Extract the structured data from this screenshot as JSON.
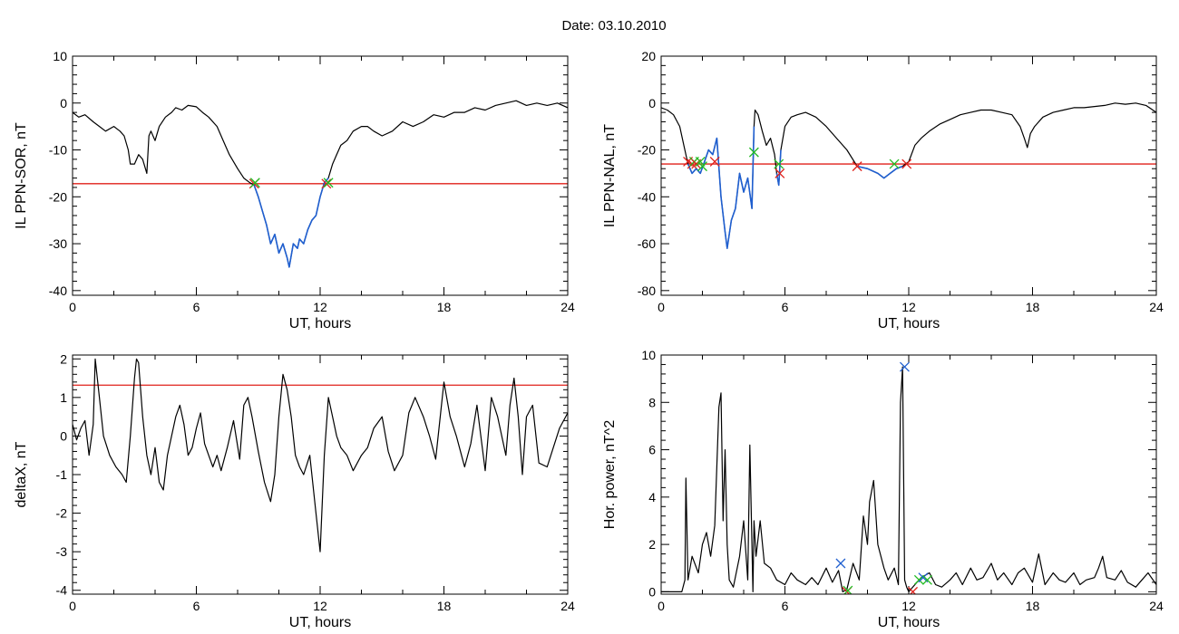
{
  "page_title": "Date:  03.10.2010",
  "colors": {
    "trace": "#000000",
    "highlight": "#1f5fd0",
    "threshold": "#e0201a",
    "marker_red": "#e0201a",
    "marker_green": "#22bb22",
    "marker_blue": "#1f5fd0"
  },
  "chart_data": [
    {
      "id": "p1",
      "type": "line",
      "title": "",
      "xlabel": "UT, hours",
      "ylabel": "IL PPN-SOR, nT",
      "xlim": [
        0,
        24
      ],
      "ylim": [
        -41,
        10
      ],
      "xticks": [
        0,
        6,
        12,
        18,
        24
      ],
      "yticks": [
        -40,
        -30,
        -20,
        -10,
        0,
        10
      ],
      "threshold": -17.2,
      "highlight_ranges": [
        [
          8.8,
          12.4
        ]
      ],
      "series": [
        {
          "x": [
            0,
            0.3,
            0.6,
            1,
            1.3,
            1.6,
            2,
            2.3,
            2.5,
            2.7,
            2.8,
            3,
            3.2,
            3.4,
            3.6,
            3.7,
            3.8,
            4,
            4.2,
            4.5,
            4.8,
            5,
            5.3,
            5.6,
            6,
            6.3,
            6.6,
            7,
            7.3,
            7.6,
            8,
            8.3,
            8.6,
            8.8,
            9,
            9.2,
            9.4,
            9.6,
            9.8,
            10,
            10.2,
            10.4,
            10.5,
            10.7,
            10.9,
            11,
            11.2,
            11.4,
            11.6,
            11.8,
            12,
            12.2,
            12.4,
            12.6,
            12.8,
            13,
            13.3,
            13.6,
            14,
            14.3,
            14.6,
            15,
            15.5,
            16,
            16.5,
            17,
            17.5,
            18,
            18.5,
            19,
            19.5,
            20,
            20.5,
            21,
            21.5,
            22,
            22.5,
            23,
            23.5,
            24
          ],
          "y": [
            -2,
            -3,
            -2.5,
            -4,
            -5,
            -6,
            -5,
            -6,
            -7,
            -10,
            -13,
            -13,
            -11,
            -12,
            -15,
            -7,
            -6,
            -8,
            -5,
            -3,
            -2,
            -1,
            -1.5,
            -0.5,
            -0.8,
            -2,
            -3,
            -5,
            -8,
            -11,
            -14,
            -16,
            -17,
            -17.5,
            -20,
            -23,
            -26,
            -30,
            -28,
            -32,
            -30,
            -33,
            -35,
            -30,
            -31,
            -29,
            -30,
            -27,
            -25,
            -24,
            -20,
            -17,
            -16,
            -13,
            -11,
            -9,
            -8,
            -6,
            -5,
            -5,
            -6,
            -7,
            -6,
            -4,
            -5,
            -4,
            -2.5,
            -3,
            -2,
            -2,
            -1,
            -1.5,
            -0.5,
            0,
            0.5,
            -0.5,
            0,
            -0.5,
            0,
            -1
          ]
        }
      ],
      "markers": [
        {
          "x": 8.8,
          "y": -17.2,
          "color": "red"
        },
        {
          "x": 8.85,
          "y": -17.0,
          "color": "green"
        },
        {
          "x": 12.3,
          "y": -17.2,
          "color": "red"
        },
        {
          "x": 12.4,
          "y": -17.0,
          "color": "green"
        }
      ]
    },
    {
      "id": "p2",
      "type": "line",
      "title": "",
      "xlabel": "UT, hours",
      "ylabel": "IL PPN-NAL, nT",
      "xlim": [
        0,
        24
      ],
      "ylim": [
        -82,
        20
      ],
      "xticks": [
        0,
        6,
        12,
        18,
        24
      ],
      "yticks": [
        -80,
        -60,
        -40,
        -20,
        0,
        20
      ],
      "threshold": -26,
      "highlight_ranges": [
        [
          1.3,
          4.5
        ],
        [
          5.6,
          5.8
        ],
        [
          9.5,
          11.9
        ]
      ],
      "series": [
        {
          "x": [
            0,
            0.3,
            0.6,
            0.9,
            1.1,
            1.3,
            1.5,
            1.7,
            1.9,
            2.1,
            2.3,
            2.5,
            2.7,
            2.9,
            3.1,
            3.2,
            3.4,
            3.6,
            3.8,
            4,
            4.2,
            4.4,
            4.5,
            4.55,
            4.7,
            4.9,
            5.1,
            5.3,
            5.5,
            5.6,
            5.7,
            5.8,
            6,
            6.3,
            6.6,
            7,
            7.5,
            8,
            8.5,
            9,
            9.5,
            10,
            10.5,
            10.8,
            11.1,
            11.4,
            11.7,
            12,
            12.3,
            12.6,
            13,
            13.5,
            14,
            14.5,
            15,
            15.5,
            16,
            16.5,
            17,
            17.4,
            17.6,
            17.75,
            17.9,
            18.1,
            18.5,
            19,
            19.5,
            20,
            20.5,
            21,
            21.5,
            22,
            22.5,
            23,
            23.5,
            24
          ],
          "y": [
            -2,
            -3,
            -5,
            -10,
            -18,
            -26,
            -30,
            -28,
            -30,
            -25,
            -20,
            -22,
            -15,
            -40,
            -55,
            -62,
            -50,
            -45,
            -30,
            -38,
            -32,
            -45,
            -10,
            -3,
            -5,
            -12,
            -18,
            -15,
            -22,
            -30,
            -35,
            -20,
            -10,
            -6,
            -5,
            -4,
            -6,
            -10,
            -15,
            -20,
            -27,
            -28,
            -30,
            -32,
            -30,
            -28,
            -27,
            -25,
            -18,
            -15,
            -12,
            -9,
            -7,
            -5,
            -4,
            -3,
            -3,
            -4,
            -5,
            -10,
            -15,
            -19,
            -13,
            -10,
            -6,
            -4,
            -3,
            -2,
            -2,
            -1.5,
            -1,
            0,
            -0.5,
            0,
            -1,
            -4
          ]
        }
      ],
      "markers": [
        {
          "x": 1.3,
          "y": -25,
          "color": "red"
        },
        {
          "x": 1.5,
          "y": -26,
          "color": "red"
        },
        {
          "x": 1.6,
          "y": -25,
          "color": "green"
        },
        {
          "x": 1.7,
          "y": -26,
          "color": "red"
        },
        {
          "x": 1.9,
          "y": -25,
          "color": "green"
        },
        {
          "x": 2.0,
          "y": -27,
          "color": "green"
        },
        {
          "x": 2.6,
          "y": -25,
          "color": "red"
        },
        {
          "x": 4.5,
          "y": -21,
          "color": "green"
        },
        {
          "x": 5.7,
          "y": -26,
          "color": "green"
        },
        {
          "x": 5.75,
          "y": -30,
          "color": "red"
        },
        {
          "x": 9.5,
          "y": -27,
          "color": "red"
        },
        {
          "x": 11.3,
          "y": -26,
          "color": "green"
        },
        {
          "x": 11.9,
          "y": -26,
          "color": "red"
        }
      ]
    },
    {
      "id": "p3",
      "type": "line",
      "title": "",
      "xlabel": "UT, hours",
      "ylabel": "deltaX, nT",
      "xlim": [
        0,
        24
      ],
      "ylim": [
        -4.1,
        2.1
      ],
      "xticks": [
        0,
        6,
        12,
        18,
        24
      ],
      "yticks": [
        -4,
        -3,
        -2,
        -1,
        0,
        1,
        2
      ],
      "threshold": 1.32,
      "highlight_ranges": [],
      "series": [
        {
          "x": [
            0,
            0.2,
            0.4,
            0.6,
            0.8,
            1,
            1.1,
            1.3,
            1.5,
            1.8,
            2.1,
            2.4,
            2.6,
            2.8,
            3,
            3.1,
            3.2,
            3.4,
            3.6,
            3.8,
            4,
            4.2,
            4.4,
            4.6,
            4.8,
            5,
            5.2,
            5.4,
            5.6,
            5.8,
            6,
            6.2,
            6.4,
            6.6,
            6.8,
            7,
            7.2,
            7.5,
            7.8,
            8.1,
            8.3,
            8.5,
            8.7,
            9,
            9.3,
            9.6,
            9.8,
            10,
            10.2,
            10.4,
            10.6,
            10.8,
            11,
            11.2,
            11.5,
            11.8,
            12,
            12.2,
            12.4,
            12.6,
            12.8,
            13,
            13.3,
            13.6,
            14,
            14.3,
            14.6,
            15,
            15.3,
            15.6,
            16,
            16.3,
            16.6,
            17,
            17.3,
            17.6,
            18,
            18.3,
            18.6,
            19,
            19.3,
            19.6,
            20,
            20.3,
            20.6,
            21,
            21.2,
            21.4,
            21.6,
            21.8,
            22,
            22.3,
            22.6,
            23,
            23.3,
            23.6,
            24
          ],
          "y": [
            0.3,
            -0.1,
            0.2,
            0.4,
            -0.5,
            0.3,
            2,
            1,
            0,
            -0.5,
            -0.8,
            -1,
            -1.2,
            0,
            1.5,
            2,
            1.9,
            0.5,
            -0.5,
            -1,
            -0.3,
            -1.2,
            -1.4,
            -0.5,
            0,
            0.5,
            0.8,
            0.3,
            -0.5,
            -0.3,
            0.2,
            0.6,
            -0.2,
            -0.5,
            -0.8,
            -0.5,
            -0.9,
            -0.3,
            0.4,
            -0.6,
            0.8,
            1,
            0.5,
            -0.4,
            -1.2,
            -1.7,
            -1,
            0.5,
            1.6,
            1.2,
            0.5,
            -0.5,
            -0.8,
            -1,
            -0.5,
            -2,
            -3,
            -0.5,
            1,
            0.5,
            0,
            -0.3,
            -0.5,
            -0.9,
            -0.5,
            -0.3,
            0.2,
            0.5,
            -0.4,
            -0.9,
            -0.5,
            0.6,
            1,
            0.5,
            0,
            -0.6,
            1.4,
            0.5,
            0,
            -0.8,
            -0.2,
            0.8,
            -0.9,
            1,
            0.5,
            -0.5,
            0.8,
            1.5,
            0.5,
            -1,
            0.5,
            0.8,
            -0.7,
            -0.8,
            -0.3,
            0.2,
            0.6
          ]
        }
      ],
      "markers": []
    },
    {
      "id": "p4",
      "type": "line",
      "title": "",
      "xlabel": "UT, hours",
      "ylabel": "Hor. power, nT^2",
      "xlim": [
        0,
        24
      ],
      "ylim": [
        -0.1,
        10
      ],
      "xticks": [
        0,
        6,
        12,
        18,
        24
      ],
      "yticks": [
        0,
        2,
        4,
        6,
        8,
        10
      ],
      "threshold": null,
      "highlight_ranges": [],
      "series": [
        {
          "x": [
            0,
            0.5,
            1,
            1.15,
            1.2,
            1.3,
            1.5,
            1.8,
            2,
            2.2,
            2.4,
            2.6,
            2.8,
            2.9,
            3,
            3.1,
            3.2,
            3.3,
            3.5,
            3.8,
            4,
            4.2,
            4.3,
            4.45,
            4.5,
            4.6,
            4.8,
            5,
            5.3,
            5.6,
            6,
            6.3,
            6.6,
            7,
            7.3,
            7.6,
            8,
            8.3,
            8.6,
            8.8,
            9,
            9.3,
            9.6,
            9.8,
            10,
            10.1,
            10.3,
            10.5,
            10.8,
            11,
            11.3,
            11.5,
            11.6,
            11.7,
            11.8,
            11.9,
            12,
            12.3,
            12.6,
            13,
            13.3,
            13.6,
            14,
            14.3,
            14.6,
            15,
            15.3,
            15.6,
            16,
            16.3,
            16.6,
            17,
            17.3,
            17.6,
            18,
            18.3,
            18.6,
            19,
            19.3,
            19.6,
            20,
            20.3,
            20.6,
            21,
            21.2,
            21.4,
            21.6,
            22,
            22.3,
            22.6,
            23,
            23.3,
            23.6,
            24
          ],
          "y": [
            0,
            0,
            0,
            0.5,
            4.8,
            0.5,
            1.5,
            0.8,
            2,
            2.5,
            1.5,
            2.8,
            7.8,
            8.4,
            3,
            6,
            2,
            0.5,
            0.2,
            1.5,
            3,
            0.5,
            6.2,
            0,
            3,
            1.5,
            3,
            1.2,
            1,
            0.5,
            0.3,
            0.8,
            0.5,
            0.3,
            0.6,
            0.3,
            1,
            0.4,
            0.9,
            0,
            0.1,
            1.2,
            0.5,
            3.2,
            2,
            3.8,
            4.7,
            2,
            1,
            0.5,
            1,
            0.3,
            8,
            9.5,
            0.5,
            0.2,
            0,
            0.3,
            0.6,
            0.8,
            0.3,
            0.2,
            0.5,
            0.8,
            0.3,
            1,
            0.5,
            0.6,
            1.2,
            0.5,
            0.8,
            0.3,
            0.8,
            1,
            0.4,
            1.6,
            0.3,
            0.8,
            0.5,
            0.4,
            0.8,
            0.3,
            0.5,
            0.6,
            1,
            1.5,
            0.6,
            0.5,
            0.9,
            0.4,
            0.2,
            0.5,
            0.8,
            0.3
          ]
        }
      ],
      "markers": [
        {
          "x": 8.7,
          "y": 1.2,
          "color": "blue"
        },
        {
          "x": 11.8,
          "y": 9.5,
          "color": "blue"
        },
        {
          "x": 9.0,
          "y": 0,
          "color": "red"
        },
        {
          "x": 9.05,
          "y": 0.05,
          "color": "green"
        },
        {
          "x": 12.5,
          "y": 0.5,
          "color": "green"
        },
        {
          "x": 12.7,
          "y": 0.6,
          "color": "blue"
        },
        {
          "x": 12.9,
          "y": 0.5,
          "color": "green"
        },
        {
          "x": 12.2,
          "y": 0,
          "color": "red"
        }
      ]
    }
  ]
}
